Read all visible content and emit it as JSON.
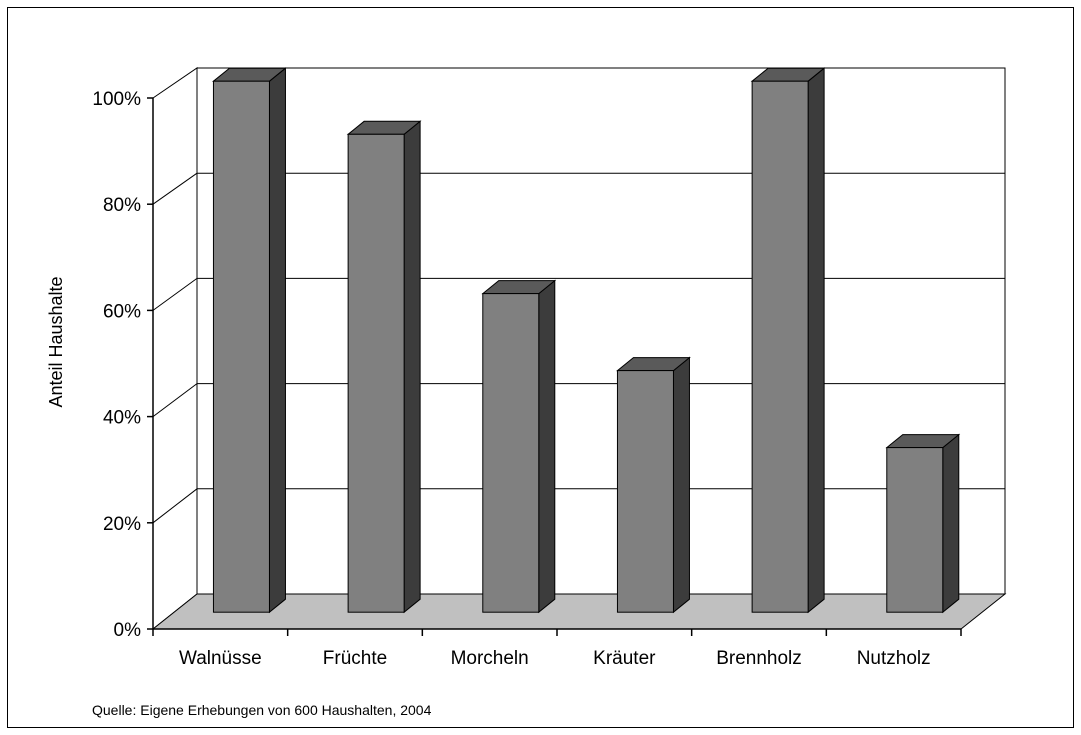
{
  "chart_data": {
    "type": "bar",
    "categories": [
      "Walnüsse",
      "Früchte",
      "Morcheln",
      "Kräuter",
      "Brennholz",
      "Nutzholz"
    ],
    "values": [
      100,
      90,
      60,
      45.5,
      100,
      31
    ],
    "ylabel": "Anteil Haushalte",
    "ylim": [
      0,
      100
    ],
    "yticks": [
      "0%",
      "20%",
      "40%",
      "60%",
      "80%",
      "100%"
    ],
    "grid": true,
    "style": "3d-column",
    "colors": {
      "bar_front": "#808080",
      "bar_top": "#5a5a5a",
      "bar_side": "#3c3c3c",
      "floor": "#c0c0c0"
    }
  },
  "source_note": "Quelle: Eigene Erhebungen von 600 Haushalten, 2004"
}
